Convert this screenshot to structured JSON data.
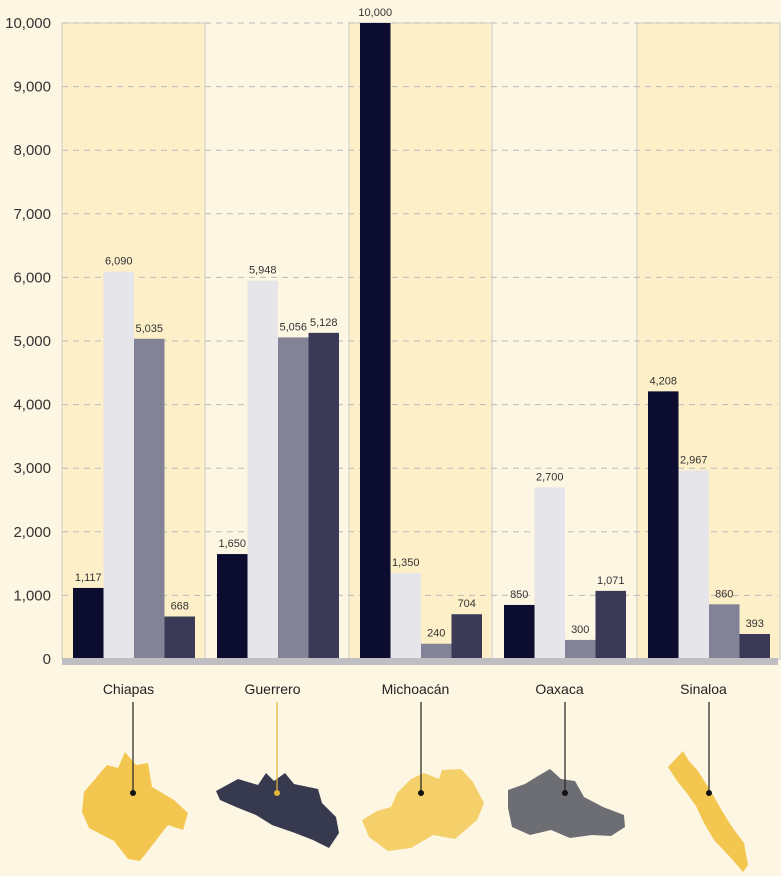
{
  "chart_data": {
    "type": "bar",
    "categories": [
      "Chiapas",
      "Guerrero",
      "Michoacán",
      "Oaxaca",
      "Sinaloa"
    ],
    "series": [
      {
        "values": [
          1117,
          1650,
          10000,
          850,
          4208
        ]
      },
      {
        "values": [
          6090,
          5948,
          1350,
          2700,
          2967
        ]
      },
      {
        "values": [
          5035,
          5056,
          240,
          300,
          860
        ]
      },
      {
        "values": [
          668,
          5128,
          704,
          1071,
          393
        ]
      }
    ],
    "value_labels": [
      [
        "1,117",
        "6,090",
        "5,035",
        "668"
      ],
      [
        "1,650",
        "5,948",
        "5,056",
        "5,128"
      ],
      [
        "10,000",
        "1,350",
        "240",
        "704"
      ],
      [
        "850",
        "2,700",
        "300",
        "1,071"
      ],
      [
        "4,208",
        "2,967",
        "860",
        "393"
      ]
    ],
    "yticks": [
      0,
      1000,
      2000,
      3000,
      4000,
      5000,
      6000,
      7000,
      8000,
      9000,
      10000
    ],
    "ytick_labels": [
      "0",
      "1,000",
      "2,000",
      "3,000",
      "4,000",
      "5,000",
      "6,000",
      "7,000",
      "8,000",
      "9,000",
      "10,000"
    ],
    "ylim": [
      0,
      10000
    ],
    "grid": true,
    "legend": "none",
    "title": "",
    "xlabel": "",
    "ylabel": "",
    "colors": {
      "series": [
        "#0b0c2e",
        "#e6e5ea",
        "#828396",
        "#3a3a57"
      ],
      "background": "#fdf6e3",
      "panel_highlight": "#fdefc7",
      "panel_border": "#cccccc",
      "grid": "#bbbbbb",
      "baseline": "#bfbfc3",
      "map_gold": "#f2c64f",
      "map_dark": "#373a4e",
      "map_gray": "#6c6e74",
      "map_gold_light": "#f5cf6a"
    },
    "map_icons": [
      "chiapas-map",
      "guerrero-map",
      "michoacan-map",
      "oaxaca-map",
      "sinaloa-map"
    ]
  }
}
